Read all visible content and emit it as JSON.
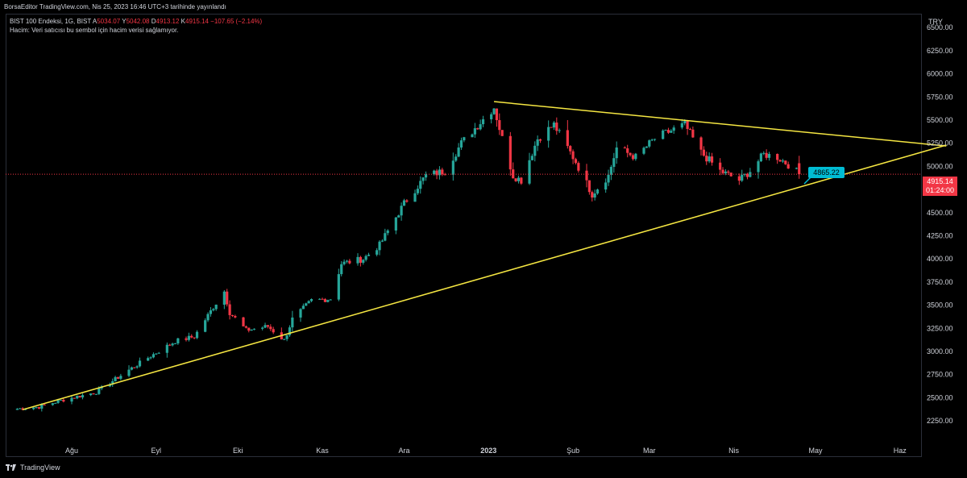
{
  "header": {
    "published": "BorsaEditor TradingView.com, Nis 25, 2023 16:46 UTC+3 tarihinde yayınlandı"
  },
  "legend": {
    "symbol": "BIST 100 Endeksi, 1G, BIST",
    "open_label": "A",
    "open": "5034.07",
    "high_label": "Y",
    "high": "5042.08",
    "low_label": "D",
    "low": "4913.12",
    "close_label": "K",
    "close": "4915.14",
    "change": "−107.65 (−2.14%)",
    "volume_note": "Hacim: Veri satıcısı bu sembol için hacim verisi sağlamıyor."
  },
  "price_scale": {
    "currency": "TRY"
  },
  "last_price": {
    "value": "4915.14",
    "countdown": "01:24:00"
  },
  "annotation": {
    "value": "4865.22"
  },
  "footer": {
    "brand": "TradingView"
  },
  "colors": {
    "up": "#26a69a",
    "down": "#f23645",
    "trendline": "#f5e642",
    "annotation": "#00bcd4"
  },
  "chart_data": {
    "type": "candlestick",
    "x_axis": {
      "ticks": [
        {
          "label": "Ağu",
          "date": "2022-08-01"
        },
        {
          "label": "Eyl",
          "date": "2022-09-01"
        },
        {
          "label": "Eki",
          "date": "2022-10-01"
        },
        {
          "label": "Kas",
          "date": "2022-11-01"
        },
        {
          "label": "Ara",
          "date": "2022-12-01"
        },
        {
          "label": "2023",
          "date": "2023-01-01",
          "bold": true
        },
        {
          "label": "Şub",
          "date": "2023-02-01"
        },
        {
          "label": "Mar",
          "date": "2023-03-01"
        },
        {
          "label": "Nis",
          "date": "2023-04-01"
        },
        {
          "label": "May",
          "date": "2023-05-01"
        },
        {
          "label": "Haz",
          "date": "2023-06-01"
        }
      ]
    },
    "y_axis": {
      "ticks": [
        "2250.00",
        "2500.00",
        "2750.00",
        "3000.00",
        "3250.00",
        "3500.00",
        "3750.00",
        "4000.00",
        "4250.00",
        "4500.00",
        "4750.00",
        "5000.00",
        "5250.00",
        "5500.00",
        "5750.00",
        "6000.00",
        "6250.00",
        "6500.00"
      ],
      "range": [
        2050,
        6650
      ]
    },
    "series_anchors": [
      {
        "date": "2022-07-12",
        "close": 2380
      },
      {
        "date": "2022-07-20",
        "close": 2400
      },
      {
        "date": "2022-07-28",
        "close": 2470
      },
      {
        "date": "2022-08-10",
        "close": 2560
      },
      {
        "date": "2022-08-22",
        "close": 2800
      },
      {
        "date": "2022-08-30",
        "close": 2950
      },
      {
        "date": "2022-09-08",
        "close": 3110
      },
      {
        "date": "2022-09-15",
        "close": 3160
      },
      {
        "date": "2022-09-22",
        "close": 3480
      },
      {
        "date": "2022-09-26",
        "close": 3650
      },
      {
        "date": "2022-09-28",
        "close": 3420
      },
      {
        "date": "2022-10-04",
        "close": 3230
      },
      {
        "date": "2022-10-12",
        "close": 3270
      },
      {
        "date": "2022-10-18",
        "close": 3120
      },
      {
        "date": "2022-10-21",
        "close": 3350
      },
      {
        "date": "2022-10-28",
        "close": 3550
      },
      {
        "date": "2022-11-04",
        "close": 3570
      },
      {
        "date": "2022-11-08",
        "close": 3950
      },
      {
        "date": "2022-11-16",
        "close": 4000
      },
      {
        "date": "2022-11-22",
        "close": 4150
      },
      {
        "date": "2022-12-01",
        "close": 4600
      },
      {
        "date": "2022-12-09",
        "close": 4900
      },
      {
        "date": "2022-12-16",
        "close": 4950
      },
      {
        "date": "2022-12-22",
        "close": 5250
      },
      {
        "date": "2022-12-30",
        "close": 5510
      },
      {
        "date": "2023-01-03",
        "close": 5640
      },
      {
        "date": "2023-01-06",
        "close": 5300
      },
      {
        "date": "2023-01-10",
        "close": 4900
      },
      {
        "date": "2023-01-13",
        "close": 4850
      },
      {
        "date": "2023-01-19",
        "close": 5300
      },
      {
        "date": "2023-01-25",
        "close": 5450
      },
      {
        "date": "2023-02-02",
        "close": 5050
      },
      {
        "date": "2023-02-08",
        "close": 4700
      },
      {
        "date": "2023-02-14",
        "close": 4900
      },
      {
        "date": "2023-02-17",
        "close": 5200
      },
      {
        "date": "2023-02-24",
        "close": 5100
      },
      {
        "date": "2023-03-03",
        "close": 5300
      },
      {
        "date": "2023-03-10",
        "close": 5400
      },
      {
        "date": "2023-03-14",
        "close": 5450
      },
      {
        "date": "2023-03-20",
        "close": 5150
      },
      {
        "date": "2023-03-27",
        "close": 4950
      },
      {
        "date": "2023-04-03",
        "close": 4850
      },
      {
        "date": "2023-04-07",
        "close": 4950
      },
      {
        "date": "2023-04-12",
        "close": 5130
      },
      {
        "date": "2023-04-17",
        "close": 5100
      },
      {
        "date": "2023-04-21",
        "close": 5020
      },
      {
        "date": "2023-04-25",
        "close": 4915.14
      }
    ],
    "trendlines": [
      {
        "name": "support",
        "from": {
          "date": "2022-07-14",
          "value": 2370
        },
        "to": {
          "date": "2023-06-18",
          "value": 5230
        }
      },
      {
        "name": "resistance",
        "from": {
          "date": "2023-01-03",
          "value": 5700
        },
        "to": {
          "date": "2023-06-18",
          "value": 5220
        }
      }
    ],
    "horizontal_line": {
      "value": 4915.14,
      "style": "dotted"
    },
    "current_price": 4915.14
  }
}
